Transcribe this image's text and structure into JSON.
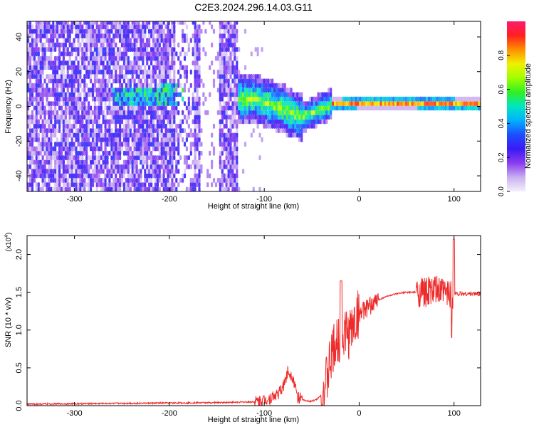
{
  "title": "C2E3.2024.296.14.03.G11",
  "colors": {
    "snr_line": "#ee2a2a",
    "axis": "#000000"
  },
  "chart_data": [
    {
      "type": "heatmap",
      "xlabel": "Height of straight line (km)",
      "ylabel": "Frequency (Hz)",
      "xlim": [
        -350,
        128
      ],
      "ylim": [
        -49,
        49
      ],
      "x_ticks": [
        "-300",
        "-200",
        "-100",
        "0",
        "100"
      ],
      "x_tick_values": [
        -300,
        -200,
        -100,
        0,
        100
      ],
      "y_ticks": [
        "-40",
        "-20",
        "0",
        "20",
        "40"
      ],
      "y_tick_values": [
        -40,
        -20,
        0,
        20,
        40
      ],
      "colorbar": {
        "label": "Normalized spectral amplitude",
        "range": [
          0,
          1
        ],
        "ticks": [
          "0.0",
          "0.2",
          "0.4",
          "0.6",
          "0.8"
        ],
        "tick_values": [
          0.0,
          0.2,
          0.4,
          0.6,
          0.8
        ],
        "colormap": [
          "#f3f0fb",
          "#c9b0f0",
          "#8a3cf0",
          "#3a1af5",
          "#1d4dff",
          "#00b0ff",
          "#00e6c0",
          "#30f020",
          "#a0ff00",
          "#f0f000",
          "#ff9000",
          "#ff2020",
          "#ff1a6e"
        ]
      },
      "ridge": [
        [
          -250,
          4
        ],
        [
          -200,
          5
        ],
        [
          -130,
          3
        ],
        [
          -110,
          3
        ],
        [
          -95,
          0
        ],
        [
          -80,
          -3
        ],
        [
          -70,
          -6
        ],
        [
          -60,
          -7
        ],
        [
          -50,
          -5
        ],
        [
          -40,
          -2
        ],
        [
          -30,
          0
        ],
        [
          -20,
          0
        ],
        [
          0,
          1
        ],
        [
          50,
          1
        ],
        [
          100,
          0
        ],
        [
          128,
          0
        ]
      ]
    },
    {
      "type": "line",
      "xlabel": "Height of straight line (km)",
      "ylabel": "SNR (10 * v/v)",
      "y_scale_label": "(x10",
      "y_scale_exp": "4",
      "xlim": [
        -350,
        128
      ],
      "ylim": [
        0,
        2.25
      ],
      "x_ticks": [
        "-300",
        "-200",
        "-100",
        "0",
        "100"
      ],
      "x_tick_values": [
        -300,
        -200,
        -100,
        0,
        100
      ],
      "y_ticks": [
        "0.0",
        "0.5",
        "1.0",
        "1.5",
        "2.0"
      ],
      "y_tick_values": [
        0.0,
        0.5,
        1.0,
        1.5,
        2.0
      ],
      "series": [
        {
          "x": [
            -350,
            -300,
            -250,
            -200,
            -150,
            -110,
            -95,
            -85,
            -80,
            -75,
            -70,
            -65,
            -60,
            -55,
            -50,
            -45,
            -40,
            -35,
            -30,
            -25,
            -20,
            -15,
            -10,
            -5,
            0,
            10,
            20,
            30,
            40,
            50,
            60,
            70,
            80,
            90,
            100,
            110,
            128
          ],
          "y": [
            0.02,
            0.025,
            0.03,
            0.035,
            0.04,
            0.05,
            0.09,
            0.16,
            0.25,
            0.46,
            0.38,
            0.12,
            0.08,
            0.06,
            0.06,
            0.08,
            0.14,
            0.3,
            0.6,
            0.8,
            0.9,
            0.95,
            0.95,
            1.1,
            1.22,
            1.3,
            1.4,
            1.45,
            1.48,
            1.5,
            1.5,
            1.5,
            1.52,
            1.5,
            1.48,
            1.48,
            1.48
          ]
        }
      ]
    }
  ]
}
